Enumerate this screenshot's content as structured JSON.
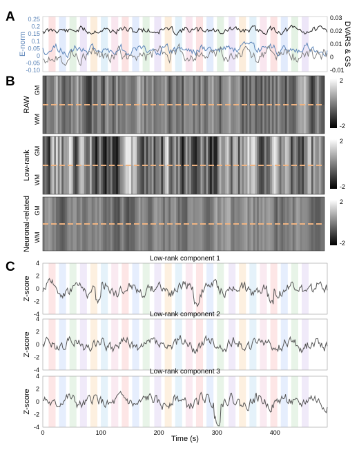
{
  "panels": {
    "a": "A",
    "b": "B",
    "c": "C"
  },
  "panel_a": {
    "left_axis_label": "E-norm",
    "right_axis_label": "DVARS & GS",
    "left_ticks": [
      "0.25",
      "0.2",
      "0.15",
      "0.1",
      "0.05",
      "0",
      "-0.05",
      "-0.10"
    ],
    "right_ticks": [
      "0.03",
      "0.02",
      "0.01",
      "0",
      "-0.01"
    ],
    "colors": {
      "dvars": "#222222",
      "enorm": "#5b84b8",
      "gs": "#777777"
    }
  },
  "panel_b": {
    "rows": [
      {
        "label": "RAW",
        "top_label": "GM",
        "bottom_label": "WM",
        "cbar_max": "2",
        "cbar_min": "-2"
      },
      {
        "label": "Low-rank",
        "top_label": "GM",
        "bottom_label": "WM",
        "cbar_max": "2",
        "cbar_min": "-2"
      },
      {
        "label": "Neuronal-related",
        "top_label": "GM",
        "bottom_label": "WM",
        "cbar_max": "2",
        "cbar_min": "-2"
      }
    ],
    "divider_color": "#f0b482"
  },
  "panel_c": {
    "ylabel": "Z-score",
    "yticks": [
      "4",
      "2",
      "0",
      "-2",
      "-4"
    ],
    "xlabel": "Time (s)",
    "xticks": [
      "0",
      "100",
      "200",
      "300",
      "400"
    ],
    "components": [
      {
        "title": "Low-rank component 1"
      },
      {
        "title": "Low-rank component 2"
      },
      {
        "title": "Low-rank component 3"
      }
    ]
  },
  "task_block_colors": [
    "#fbd6d6",
    "#d6e2fb",
    "#d8ecd8",
    "#e6dcf5",
    "#fbe6cc",
    "#d4eaf7",
    "#f6dce8"
  ],
  "chart_data": [
    {
      "type": "line",
      "title": "",
      "x_range": [
        0,
        490
      ],
      "ylim_left": [
        -0.1,
        0.25
      ],
      "ylim_right": [
        -0.01,
        0.03
      ],
      "series": [
        {
          "name": "",
          "approx_mean": 0.02,
          "amplitude": 0.003,
          "axis": "right"
        },
        {
          "name": "",
          "approx_mean": 0.04,
          "amplitude": 0.03,
          "axis": "left"
        },
        {
          "name": "",
          "approx_mean": 0.0,
          "amplitude": 0.004,
          "axis": "right"
        }
      ]
    },
    {
      "type": "line",
      "title": "Low-rank component 1",
      "xlabel": "",
      "ylabel": "Z-score",
      "ylim": [
        -4,
        4
      ],
      "x_range": [
        0,
        490
      ]
    },
    {
      "type": "line",
      "title": "Low-rank component 2",
      "xlabel": "",
      "ylabel": "Z-score",
      "ylim": [
        -4,
        4
      ],
      "x_range": [
        0,
        490
      ]
    },
    {
      "type": "line",
      "title": "Low-rank component 3",
      "xlabel": "Time (s)",
      "ylabel": "Z-score",
      "ylim": [
        -4,
        4
      ],
      "x_range": [
        0,
        490
      ]
    }
  ]
}
